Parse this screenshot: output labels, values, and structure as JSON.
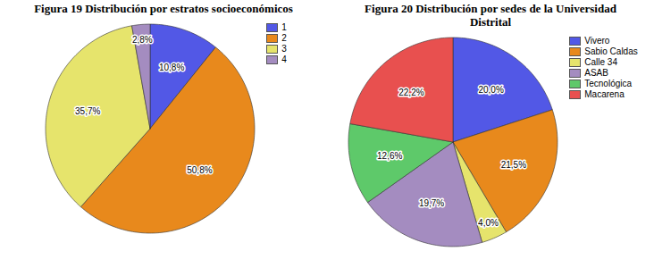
{
  "chart_data": [
    {
      "type": "pie",
      "title": "Figura 19 Distribución por estratos socioeconómicos",
      "categories": [
        "1",
        "2",
        "3",
        "4"
      ],
      "values": [
        10.8,
        50.8,
        35.7,
        2.8
      ],
      "value_labels": [
        "10,8%",
        "50,8%",
        "35,7%",
        "2,8%"
      ],
      "colors": [
        "#5258e6",
        "#e8891c",
        "#e6e46c",
        "#a48cc0"
      ],
      "legend": "top-right",
      "data_labels": true
    },
    {
      "type": "pie",
      "title": "Figura 20 Distribución por sedes de la Universidad Distrital",
      "categories": [
        "Vivero",
        "Sabio Caldas",
        "Calle 34",
        "ASAB",
        "Tecnológica",
        "Macarena"
      ],
      "values": [
        20.0,
        21.5,
        4.0,
        19.7,
        12.6,
        22.2
      ],
      "value_labels": [
        "20,0%",
        "21,5%",
        "4,0%",
        "19,7%",
        "12,6%",
        "22,2%"
      ],
      "colors": [
        "#5258e6",
        "#e8891c",
        "#e6e46c",
        "#a48cc0",
        "#5ec96a",
        "#e8504f"
      ],
      "legend": "top-right",
      "data_labels": true
    }
  ]
}
